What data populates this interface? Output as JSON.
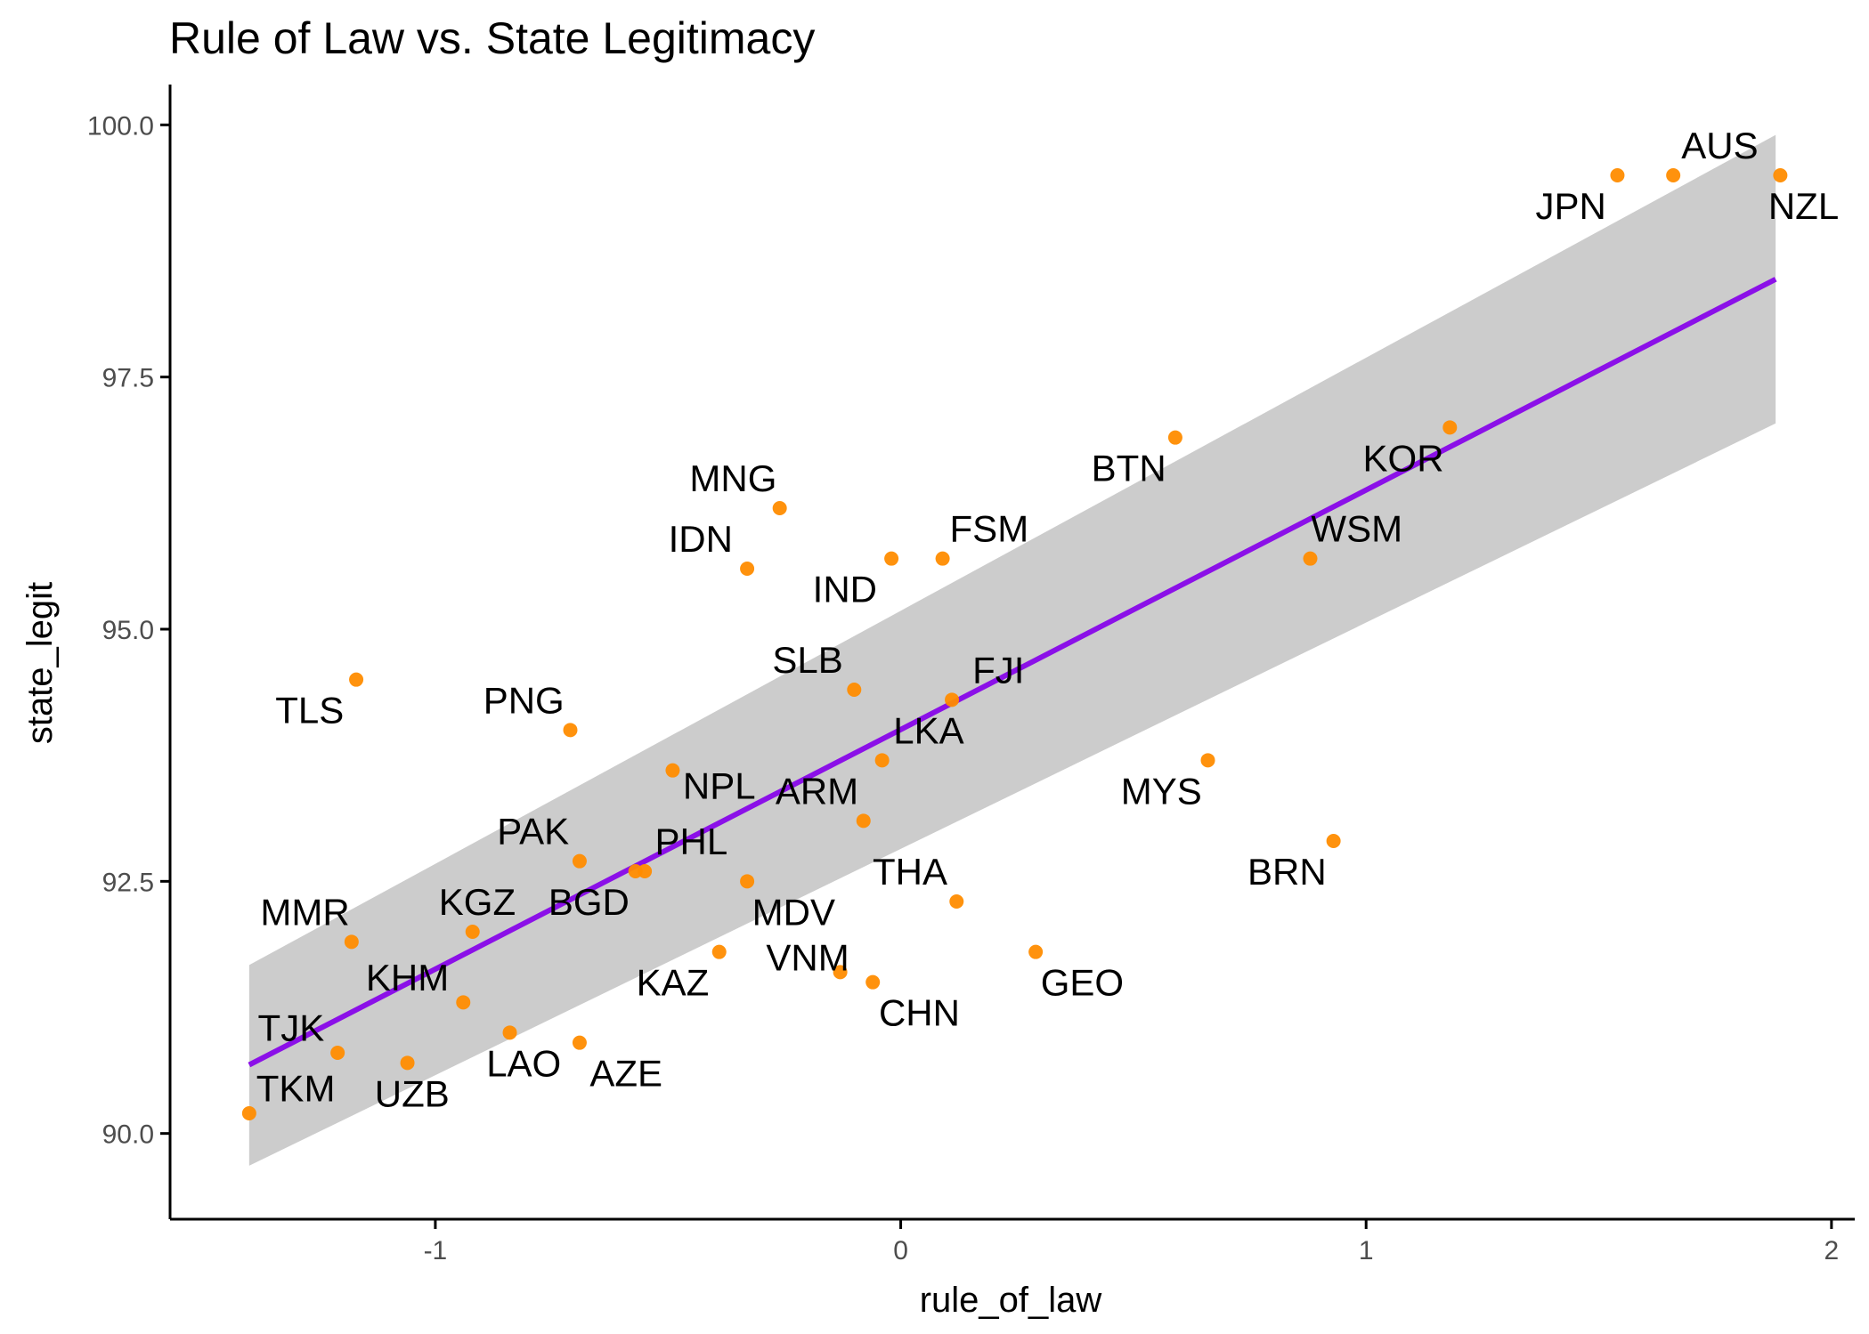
{
  "chart_data": {
    "type": "scatter",
    "title": "Rule of Law vs. State Legitimacy",
    "xlabel": "rule_of_law",
    "ylabel": "state_legit",
    "xlim": [
      -1.57,
      2.05
    ],
    "ylim": [
      89.15,
      100.4
    ],
    "x_ticks": [
      -1,
      0,
      1,
      2
    ],
    "x_tick_labels": [
      "-1",
      "0",
      "1",
      "2"
    ],
    "y_ticks": [
      90.0,
      92.5,
      95.0,
      97.5,
      100.0
    ],
    "y_tick_labels": [
      "90.0",
      "92.5",
      "95.0",
      "97.5",
      "100.0"
    ],
    "grid": false,
    "point_color": "#ff8c00",
    "line_color": "#8b10e8",
    "ribbon_color": "#cccccc",
    "trend_line": {
      "x": [
        -1.4,
        1.88
      ],
      "y": [
        90.68,
        98.47
      ]
    },
    "confidence_band": {
      "x": [
        -1.4,
        1.88
      ],
      "upper": [
        91.67,
        99.9
      ],
      "lower": [
        89.68,
        97.04
      ]
    },
    "points": [
      {
        "label": "AUS",
        "x": 1.66,
        "y": 99.5,
        "label_dx": 0.1,
        "label_dy": 0.3
      },
      {
        "label": "JPN",
        "x": 1.54,
        "y": 99.5,
        "label_dx": -0.1,
        "label_dy": -0.3
      },
      {
        "label": "NZL",
        "x": 1.89,
        "y": 99.5,
        "label_dx": 0.05,
        "label_dy": -0.3
      },
      {
        "label": "KOR",
        "x": 1.18,
        "y": 97.0,
        "label_dx": -0.1,
        "label_dy": -0.3
      },
      {
        "label": "BTN",
        "x": 0.59,
        "y": 96.9,
        "label_dx": -0.1,
        "label_dy": -0.3
      },
      {
        "label": "WSM",
        "x": 0.88,
        "y": 95.7,
        "label_dx": 0.1,
        "label_dy": 0.3
      },
      {
        "label": "MNG",
        "x": -0.26,
        "y": 96.2,
        "label_dx": -0.1,
        "label_dy": 0.3
      },
      {
        "label": "IDN",
        "x": -0.33,
        "y": 95.6,
        "label_dx": -0.1,
        "label_dy": 0.3
      },
      {
        "label": "IND",
        "x": -0.02,
        "y": 95.7,
        "label_dx": -0.1,
        "label_dy": -0.3
      },
      {
        "label": "FSM",
        "x": 0.09,
        "y": 95.7,
        "label_dx": 0.1,
        "label_dy": 0.3
      },
      {
        "label": "SLB",
        "x": -0.1,
        "y": 94.4,
        "label_dx": -0.1,
        "label_dy": 0.3
      },
      {
        "label": "FJI",
        "x": 0.11,
        "y": 94.3,
        "label_dx": 0.1,
        "label_dy": 0.3
      },
      {
        "label": "TLS",
        "x": -1.17,
        "y": 94.5,
        "label_dx": -0.1,
        "label_dy": -0.3
      },
      {
        "label": "PNG",
        "x": -0.71,
        "y": 94.0,
        "label_dx": -0.1,
        "label_dy": 0.3
      },
      {
        "label": "LKA",
        "x": -0.04,
        "y": 93.7,
        "label_dx": 0.1,
        "label_dy": 0.3
      },
      {
        "label": "MYS",
        "x": 0.66,
        "y": 93.7,
        "label_dx": -0.1,
        "label_dy": -0.3
      },
      {
        "label": "NPL",
        "x": -0.49,
        "y": 93.6,
        "label_dx": 0.1,
        "label_dy": -0.15
      },
      {
        "label": "ARM",
        "x": -0.08,
        "y": 93.1,
        "label_dx": -0.1,
        "label_dy": 0.3
      },
      {
        "label": "PAK",
        "x": -0.69,
        "y": 92.7,
        "label_dx": -0.1,
        "label_dy": 0.3
      },
      {
        "label": "PHL",
        "x": -0.55,
        "y": 92.6,
        "label_dx": 0.1,
        "label_dy": 0.3
      },
      {
        "label": "BGD",
        "x": -0.57,
        "y": 92.6,
        "label_dx": -0.1,
        "label_dy": -0.3
      },
      {
        "label": "BRN",
        "x": 0.93,
        "y": 92.9,
        "label_dx": -0.1,
        "label_dy": -0.3
      },
      {
        "label": "MDV",
        "x": -0.33,
        "y": 92.5,
        "label_dx": 0.1,
        "label_dy": -0.3
      },
      {
        "label": "THA",
        "x": 0.12,
        "y": 92.3,
        "label_dx": -0.1,
        "label_dy": 0.3
      },
      {
        "label": "MMR",
        "x": -1.18,
        "y": 91.9,
        "label_dx": -0.1,
        "label_dy": 0.3
      },
      {
        "label": "KGZ",
        "x": -0.92,
        "y": 92.0,
        "label_dx": 0.01,
        "label_dy": 0.3
      },
      {
        "label": "KAZ",
        "x": -0.39,
        "y": 91.8,
        "label_dx": -0.1,
        "label_dy": -0.3
      },
      {
        "label": "VNM",
        "x": -0.13,
        "y": 91.6,
        "label_dx": -0.07,
        "label_dy": 0.15
      },
      {
        "label": "GEO",
        "x": 0.29,
        "y": 91.8,
        "label_dx": 0.1,
        "label_dy": -0.3
      },
      {
        "label": "CHN",
        "x": -0.06,
        "y": 91.5,
        "label_dx": 0.1,
        "label_dy": -0.3
      },
      {
        "label": "KHM",
        "x": -0.94,
        "y": 91.3,
        "label_dx": -0.12,
        "label_dy": 0.25
      },
      {
        "label": "TJK",
        "x": -1.21,
        "y": 90.8,
        "label_dx": -0.1,
        "label_dy": 0.25
      },
      {
        "label": "LAO",
        "x": -0.84,
        "y": 91.0,
        "label_dx": 0.03,
        "label_dy": -0.3
      },
      {
        "label": "AZE",
        "x": -0.69,
        "y": 90.9,
        "label_dx": 0.1,
        "label_dy": -0.3
      },
      {
        "label": "UZB",
        "x": -1.06,
        "y": 90.7,
        "label_dx": 0.01,
        "label_dy": -0.3
      },
      {
        "label": "TKM",
        "x": -1.4,
        "y": 90.2,
        "label_dx": 0.1,
        "label_dy": 0.25
      }
    ]
  }
}
